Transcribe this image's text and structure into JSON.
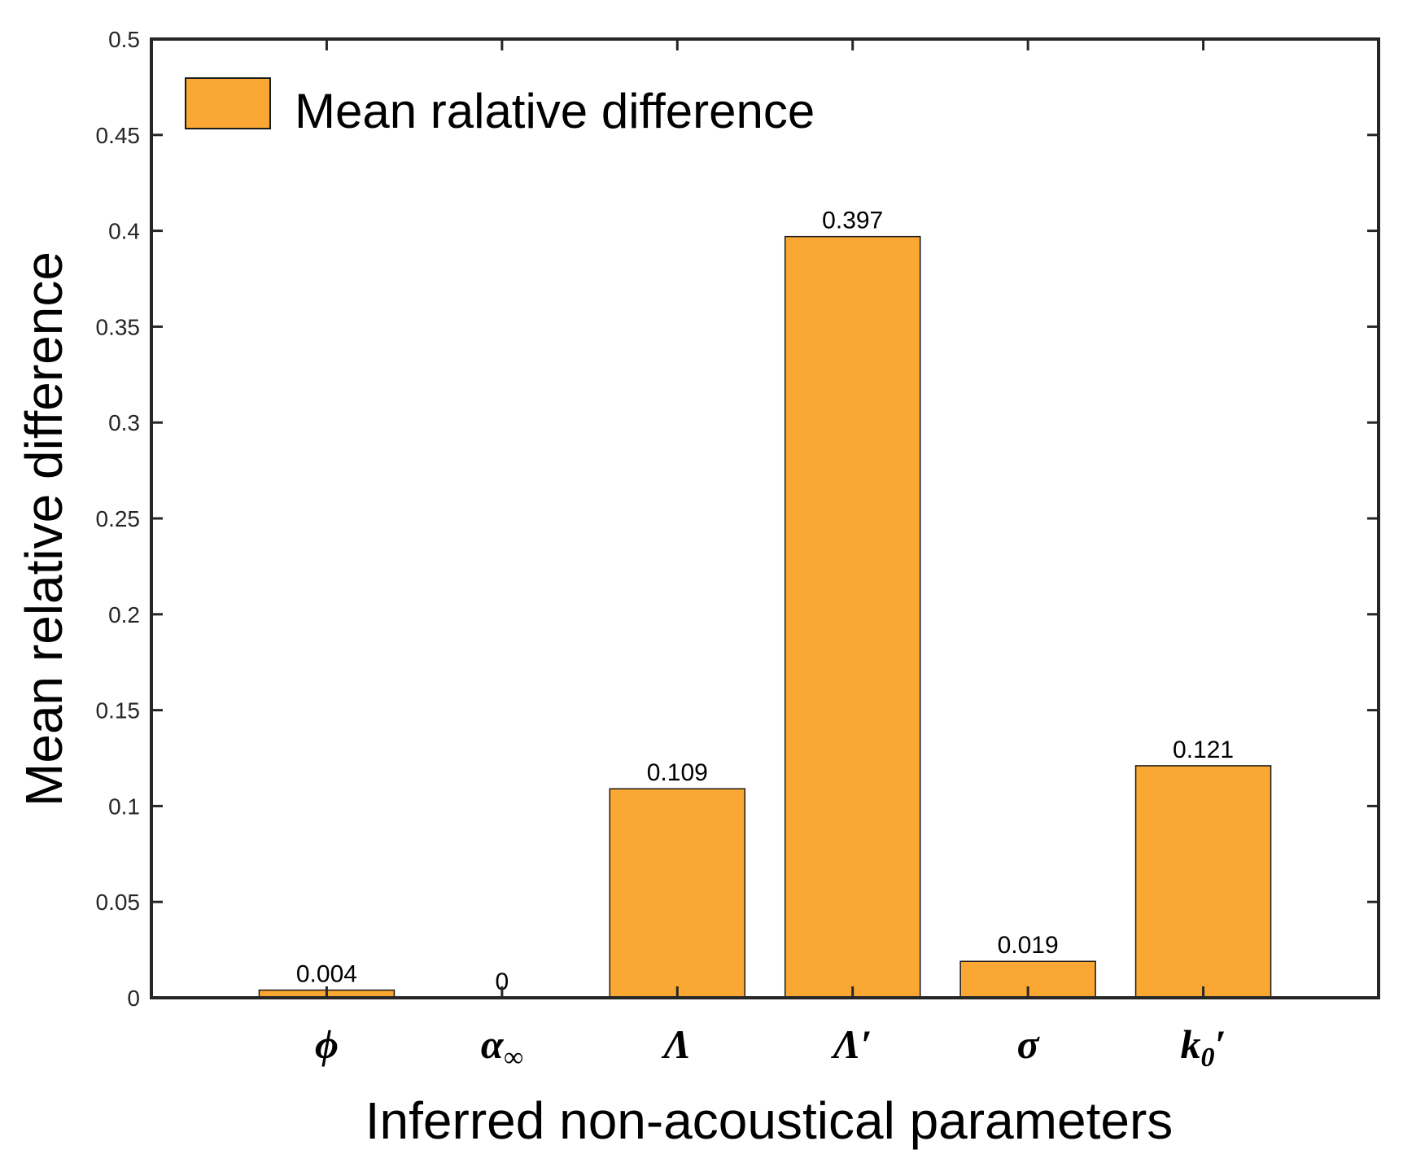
{
  "chart_data": {
    "type": "bar",
    "categories": [
      {
        "main": "ϕ",
        "sub": ""
      },
      {
        "main": "α",
        "sub": "∞"
      },
      {
        "main": "Λ",
        "sub": ""
      },
      {
        "main": "Λ′",
        "sub": ""
      },
      {
        "main": "σ",
        "sub": ""
      },
      {
        "main": "k",
        "sub": "0",
        "suffix": "′"
      }
    ],
    "values": [
      0.004,
      0,
      0.109,
      0.397,
      0.019,
      0.121
    ],
    "data_labels": [
      "0.004",
      "0",
      "0.109",
      "0.397",
      "0.019",
      "0.121"
    ],
    "xlabel": "Inferred non-acoustical parameters",
    "ylabel": "Mean relative difference",
    "ylim": [
      0,
      0.5
    ],
    "yticks": [
      0,
      0.05,
      0.1,
      0.15,
      0.2,
      0.25,
      0.3,
      0.35,
      0.4,
      0.45,
      0.5
    ],
    "ytick_labels": [
      "0",
      "0.05",
      "0.1",
      "0.15",
      "0.2",
      "0.25",
      "0.3",
      "0.35",
      "0.4",
      "0.45",
      "0.5"
    ],
    "legend": {
      "entries": [
        "Mean ralative difference"
      ],
      "placement": "top-left"
    },
    "grid": false,
    "colors": {
      "bar": "#FBA733",
      "bar_edge": "#1a1a1a",
      "axis": "#262626"
    }
  }
}
